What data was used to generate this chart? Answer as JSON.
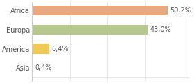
{
  "categories": [
    "Africa",
    "Europa",
    "America",
    "Asia"
  ],
  "values": [
    50.2,
    43.0,
    6.4,
    0.4
  ],
  "labels": [
    "50,2%",
    "43,0%",
    "6,4%",
    "0,4%"
  ],
  "bar_colors": [
    "#e8a97e",
    "#b5c98e",
    "#f0c956",
    "#a8c4d4"
  ],
  "background_color": "#ffffff",
  "grid_color": "#dddddd",
  "text_color": "#555555",
  "label_fontsize": 7.0,
  "tick_fontsize": 7.0,
  "xlim": [
    0,
    58
  ],
  "bar_height": 0.52,
  "left_border_color": "#cccccc"
}
